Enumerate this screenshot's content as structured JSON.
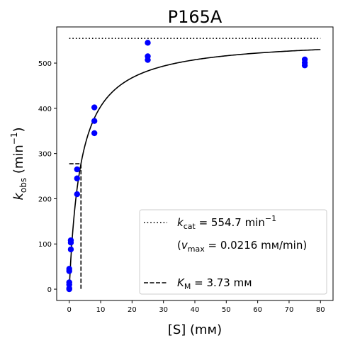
{
  "chart_data": {
    "type": "scatter",
    "title": "P165A",
    "xlabel": "[S] (mм)",
    "ylabel": {
      "main": "k",
      "sub": "obs",
      "unit_prefix": " (min",
      "sup": "−1",
      "unit_suffix": ")"
    },
    "xlim": [
      -4,
      84
    ],
    "ylim": [
      -25,
      580
    ],
    "xticks": [
      0,
      10,
      20,
      30,
      40,
      50,
      60,
      70,
      80
    ],
    "yticks": [
      0,
      100,
      200,
      300,
      400,
      500
    ],
    "grid": false,
    "legend_position": "lower-right",
    "series": [
      {
        "type": "scatter",
        "color": "#0000ff",
        "points": [
          [
            0,
            0
          ],
          [
            0,
            2
          ],
          [
            0,
            10
          ],
          [
            0,
            15
          ],
          [
            0,
            40
          ],
          [
            0,
            45
          ],
          [
            0.5,
            88
          ],
          [
            0.5,
            103
          ],
          [
            0.5,
            108
          ],
          [
            2.5,
            210
          ],
          [
            2.5,
            245
          ],
          [
            2.5,
            265
          ],
          [
            8,
            345
          ],
          [
            8,
            372
          ],
          [
            8,
            402
          ],
          [
            25,
            507
          ],
          [
            25,
            515
          ],
          [
            25,
            545
          ],
          [
            75,
            495
          ],
          [
            75,
            501
          ],
          [
            75,
            508
          ]
        ]
      },
      {
        "type": "line",
        "style": "solid",
        "color": "#000000",
        "model": "michaelis-menten",
        "kcat": 554.7,
        "KM": 3.73,
        "x_range": [
          0,
          80
        ]
      },
      {
        "type": "line",
        "style": "dotted",
        "color": "#000000",
        "x": [
          0,
          80
        ],
        "y": [
          554.7,
          554.7
        ]
      },
      {
        "type": "line",
        "style": "dashed",
        "color": "#000000",
        "x": [
          0,
          3.73,
          3.73
        ],
        "y": [
          277.35,
          277.35,
          0
        ]
      }
    ],
    "legend": {
      "kcat": {
        "sym": "k",
        "sub": "cat",
        "text": " = 554.7 min",
        "sup": "−1"
      },
      "vmax": {
        "open": "(",
        "sym": "v",
        "sub": "max",
        "text": " = 0.0216 mм/min)"
      },
      "km": {
        "sym": "K",
        "sub": "M",
        "text": " = 3.73 mм"
      }
    }
  }
}
